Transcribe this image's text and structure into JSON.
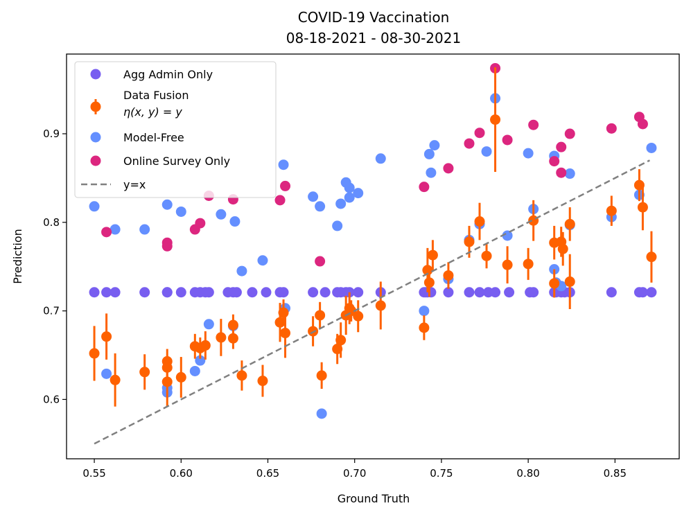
{
  "chart_data": {
    "type": "scatter",
    "title": "COVID-19 Vaccination",
    "subtitle": "08-18-2021 - 08-30-2021",
    "xlabel": "Ground Truth",
    "ylabel": "Prediction",
    "xlim": [
      0.534,
      0.887
    ],
    "ylim": [
      0.533,
      0.99
    ],
    "xticks": [
      0.55,
      0.6,
      0.65,
      0.7,
      0.75,
      0.8,
      0.85
    ],
    "xtick_labels": [
      "0.55",
      "0.60",
      "0.65",
      "0.70",
      "0.75",
      "0.80",
      "0.85"
    ],
    "yticks": [
      0.6,
      0.7,
      0.8,
      0.9
    ],
    "ytick_labels": [
      "0.6",
      "0.7",
      "0.8",
      "0.9"
    ],
    "grid": false,
    "legend_position": "top-left",
    "legend": [
      {
        "label": "Agg Admin Only",
        "kind": "marker",
        "color": "#785EF0"
      },
      {
        "label": "Data Fusion",
        "label2": "η(x, y) = y",
        "kind": "errorbar",
        "color": "#FE6100"
      },
      {
        "label": "Model-Free",
        "kind": "marker",
        "color": "#648FFF"
      },
      {
        "label": "Online Survey Only",
        "kind": "marker",
        "color": "#DC267F"
      },
      {
        "label": "y=x",
        "kind": "dashed-line",
        "color": "#808080"
      }
    ],
    "reference_line": {
      "name": "y=x",
      "x": [
        0.55,
        0.87
      ],
      "y": [
        0.55,
        0.87
      ],
      "style": "dashed",
      "color": "#808080"
    },
    "series": [
      {
        "name": "Agg Admin Only",
        "color": "#785EF0",
        "x": [
          0.55,
          0.557,
          0.562,
          0.579,
          0.592,
          0.592,
          0.6,
          0.608,
          0.611,
          0.614,
          0.616,
          0.627,
          0.63,
          0.632,
          0.641,
          0.649,
          0.657,
          0.659,
          0.676,
          0.683,
          0.69,
          0.692,
          0.695,
          0.697,
          0.702,
          0.715,
          0.74,
          0.741,
          0.742,
          0.744,
          0.754,
          0.766,
          0.772,
          0.777,
          0.781,
          0.789,
          0.801,
          0.803,
          0.815,
          0.816,
          0.819,
          0.821,
          0.824,
          0.848,
          0.864,
          0.866,
          0.871
        ],
        "y": [
          0.721,
          0.721,
          0.721,
          0.721,
          0.721,
          0.721,
          0.721,
          0.721,
          0.721,
          0.721,
          0.721,
          0.721,
          0.721,
          0.721,
          0.721,
          0.721,
          0.721,
          0.721,
          0.721,
          0.721,
          0.721,
          0.721,
          0.721,
          0.721,
          0.721,
          0.721,
          0.721,
          0.721,
          0.721,
          0.721,
          0.721,
          0.721,
          0.721,
          0.721,
          0.721,
          0.721,
          0.721,
          0.721,
          0.721,
          0.721,
          0.721,
          0.721,
          0.721,
          0.721,
          0.721,
          0.721,
          0.721
        ]
      },
      {
        "name": "Model-Free",
        "color": "#648FFF",
        "x": [
          0.55,
          0.557,
          0.562,
          0.579,
          0.592,
          0.592,
          0.592,
          0.6,
          0.608,
          0.611,
          0.616,
          0.623,
          0.63,
          0.631,
          0.635,
          0.647,
          0.659,
          0.66,
          0.676,
          0.68,
          0.681,
          0.69,
          0.692,
          0.695,
          0.697,
          0.697,
          0.702,
          0.715,
          0.74,
          0.743,
          0.744,
          0.746,
          0.754,
          0.766,
          0.772,
          0.776,
          0.781,
          0.788,
          0.8,
          0.803,
          0.815,
          0.815,
          0.816,
          0.819,
          0.824,
          0.824,
          0.848,
          0.864,
          0.871
        ],
        "y": [
          0.818,
          0.629,
          0.792,
          0.792,
          0.82,
          0.613,
          0.608,
          0.812,
          0.632,
          0.644,
          0.685,
          0.809,
          0.683,
          0.801,
          0.745,
          0.757,
          0.865,
          0.703,
          0.829,
          0.818,
          0.584,
          0.796,
          0.821,
          0.845,
          0.828,
          0.839,
          0.833,
          0.872,
          0.7,
          0.877,
          0.856,
          0.887,
          0.736,
          0.78,
          0.798,
          0.88,
          0.94,
          0.785,
          0.878,
          0.815,
          0.875,
          0.747,
          0.732,
          0.728,
          0.855,
          0.797,
          0.806,
          0.831,
          0.884
        ]
      },
      {
        "name": "Online Survey Only",
        "color": "#DC267F",
        "x": [
          0.557,
          0.592,
          0.592,
          0.608,
          0.611,
          0.616,
          0.63,
          0.657,
          0.66,
          0.68,
          0.74,
          0.754,
          0.766,
          0.772,
          0.781,
          0.788,
          0.803,
          0.815,
          0.819,
          0.819,
          0.824,
          0.848,
          0.864,
          0.866
        ],
        "y": [
          0.789,
          0.777,
          0.773,
          0.792,
          0.799,
          0.83,
          0.826,
          0.825,
          0.841,
          0.756,
          0.84,
          0.861,
          0.889,
          0.901,
          0.974,
          0.893,
          0.91,
          0.869,
          0.885,
          0.856,
          0.9,
          0.906,
          0.919,
          0.911
        ]
      },
      {
        "name": "Data Fusion",
        "color": "#FE6100",
        "x": [
          0.55,
          0.557,
          0.562,
          0.579,
          0.592,
          0.592,
          0.592,
          0.6,
          0.608,
          0.611,
          0.614,
          0.623,
          0.63,
          0.63,
          0.635,
          0.647,
          0.657,
          0.659,
          0.66,
          0.676,
          0.68,
          0.681,
          0.69,
          0.692,
          0.695,
          0.697,
          0.698,
          0.702,
          0.715,
          0.74,
          0.742,
          0.743,
          0.745,
          0.754,
          0.766,
          0.772,
          0.776,
          0.781,
          0.788,
          0.8,
          0.803,
          0.815,
          0.815,
          0.819,
          0.82,
          0.824,
          0.824,
          0.848,
          0.864,
          0.866,
          0.871
        ],
        "y": [
          0.652,
          0.671,
          0.622,
          0.631,
          0.643,
          0.636,
          0.62,
          0.625,
          0.66,
          0.658,
          0.661,
          0.67,
          0.684,
          0.669,
          0.627,
          0.621,
          0.687,
          0.698,
          0.675,
          0.677,
          0.695,
          0.627,
          0.657,
          0.667,
          0.695,
          0.703,
          0.7,
          0.694,
          0.706,
          0.681,
          0.746,
          0.732,
          0.763,
          0.74,
          0.778,
          0.801,
          0.762,
          0.916,
          0.752,
          0.753,
          0.802,
          0.777,
          0.731,
          0.778,
          0.77,
          0.798,
          0.733,
          0.813,
          0.842,
          0.817,
          0.761
        ],
        "err": [
          0.031,
          0.026,
          0.03,
          0.02,
          0.014,
          0.013,
          0.028,
          0.023,
          0.014,
          0.012,
          0.016,
          0.021,
          0.012,
          0.012,
          0.017,
          0.018,
          0.022,
          0.015,
          0.028,
          0.017,
          0.015,
          0.015,
          0.017,
          0.02,
          0.022,
          0.018,
          0.012,
          0.018,
          0.027,
          0.014,
          0.025,
          0.016,
          0.017,
          0.015,
          0.018,
          0.021,
          0.014,
          0.059,
          0.021,
          0.018,
          0.023,
          0.019,
          0.016,
          0.017,
          0.019,
          0.019,
          0.031,
          0.017,
          0.018,
          0.026,
          0.029
        ]
      }
    ]
  }
}
